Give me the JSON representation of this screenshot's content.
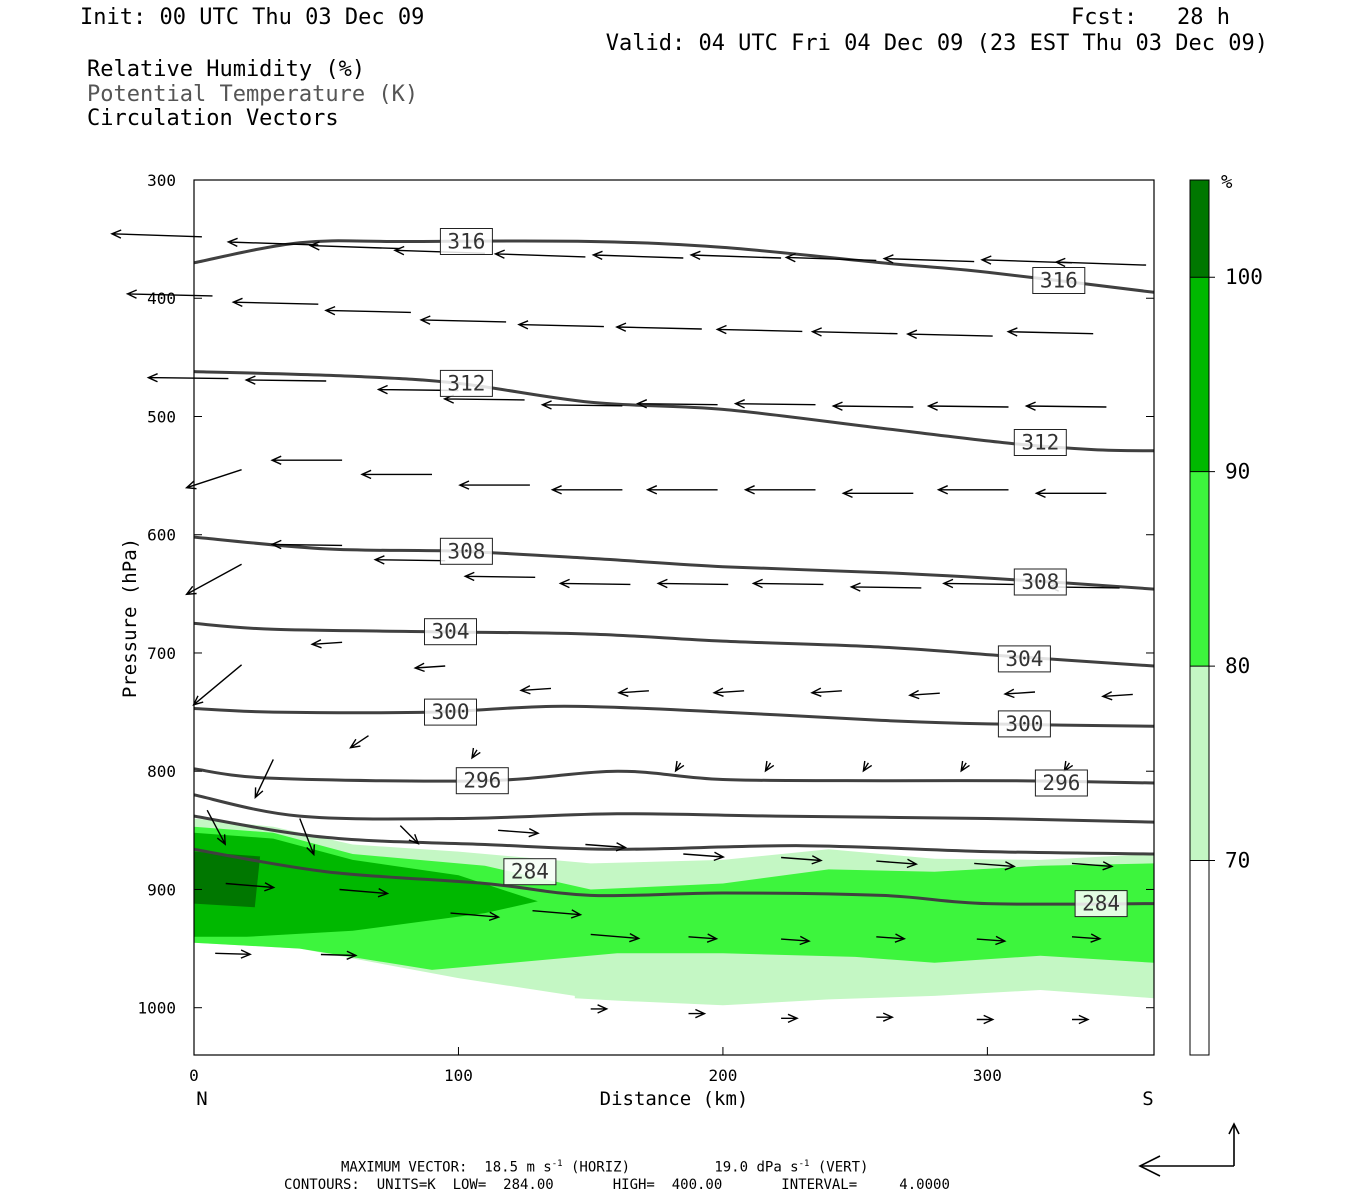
{
  "header": {
    "init": "Init: 00 UTC Thu 03 Dec 09",
    "fcst": "Fcst:   28 h",
    "valid": "Valid: 04 UTC Fri 04 Dec 09 (23 EST Thu 03 Dec 09)",
    "field1": "Relative Humidity (%)",
    "field2": "Potential Temperature (K)",
    "field3": "Circulation Vectors"
  },
  "footer": {
    "max_vector_label": "MAXIMUM VECTOR:",
    "max_vector_horiz": "18.5 m s",
    "max_vector_horiz_exp": "-1",
    "max_vector_horiz_tail": " (HORIZ)",
    "max_vector_vert": "19.0 dPa s",
    "max_vector_vert_exp": "-1",
    "max_vector_vert_tail": " (VERT)",
    "contours": "CONTOURS:  UNITS=K  LOW=  284.00       HIGH=  400.00       INTERVAL=     4.0000"
  },
  "colors": {
    "rh_70_80": "#c4f7c4",
    "rh_80_90": "#3df53d",
    "rh_90_100": "#00b800",
    "rh_100": "#007700",
    "theta_line": "#404040",
    "vector": "#000000"
  },
  "chart_data": {
    "type": "cross-section",
    "xlabel": "Distance (km)",
    "ylabel": "Pressure (hPa)",
    "xlim": [
      0,
      363
    ],
    "ylim": [
      1040,
      300
    ],
    "x_ticks": [
      0,
      100,
      200,
      300
    ],
    "y_ticks": [
      300,
      400,
      500,
      600,
      700,
      800,
      900,
      1000
    ],
    "endpoints": {
      "left": "N",
      "right": "S"
    },
    "colorbar": {
      "unit": "%",
      "ticks": [
        70,
        80,
        90,
        100
      ],
      "bands": [
        {
          "from": 60,
          "to": 70,
          "color": "#ffffff"
        },
        {
          "from": 70,
          "to": 80,
          "color": "#c4f7c4"
        },
        {
          "from": 80,
          "to": 90,
          "color": "#3df53d"
        },
        {
          "from": 90,
          "to": 100,
          "color": "#00b800"
        },
        {
          "from": 100,
          "to": 105,
          "color": "#007700"
        }
      ]
    },
    "theta_isentropes": [
      {
        "value": 316,
        "points": [
          [
            0,
            370
          ],
          [
            40,
            353
          ],
          [
            80,
            352
          ],
          [
            150,
            352
          ],
          [
            200,
            357
          ],
          [
            260,
            370
          ],
          [
            300,
            378
          ],
          [
            363,
            395
          ]
        ],
        "labels": [
          [
            103,
            352
          ],
          [
            327,
            385
          ]
        ]
      },
      {
        "value": 312,
        "points": [
          [
            0,
            462
          ],
          [
            60,
            466
          ],
          [
            100,
            472
          ],
          [
            150,
            488
          ],
          [
            200,
            494
          ],
          [
            260,
            510
          ],
          [
            310,
            523
          ],
          [
            340,
            528
          ],
          [
            363,
            529
          ]
        ],
        "labels": [
          [
            103,
            472
          ],
          [
            320,
            522
          ]
        ]
      },
      {
        "value": 308,
        "points": [
          [
            0,
            602
          ],
          [
            50,
            612
          ],
          [
            100,
            614
          ],
          [
            150,
            620
          ],
          [
            200,
            627
          ],
          [
            260,
            632
          ],
          [
            310,
            638
          ],
          [
            363,
            646
          ]
        ],
        "labels": [
          [
            103,
            614
          ],
          [
            320,
            640
          ]
        ]
      },
      {
        "value": 304,
        "points": [
          [
            0,
            675
          ],
          [
            30,
            680
          ],
          [
            90,
            682
          ],
          [
            150,
            684
          ],
          [
            200,
            690
          ],
          [
            260,
            695
          ],
          [
            310,
            703
          ],
          [
            363,
            711
          ]
        ],
        "labels": [
          [
            97,
            682
          ],
          [
            314,
            705
          ]
        ]
      },
      {
        "value": 300,
        "points": [
          [
            0,
            747
          ],
          [
            30,
            750
          ],
          [
            90,
            750
          ],
          [
            140,
            745
          ],
          [
            200,
            750
          ],
          [
            260,
            757
          ],
          [
            300,
            760
          ],
          [
            363,
            762
          ]
        ],
        "labels": [
          [
            97,
            750
          ],
          [
            314,
            760
          ]
        ]
      },
      {
        "value": 296,
        "points": [
          [
            0,
            798
          ],
          [
            30,
            806
          ],
          [
            110,
            808
          ],
          [
            160,
            800
          ],
          [
            200,
            807
          ],
          [
            260,
            808
          ],
          [
            310,
            808
          ],
          [
            363,
            810
          ]
        ],
        "labels": [
          [
            109,
            808
          ],
          [
            328,
            810
          ]
        ]
      },
      {
        "value": 292,
        "points": [
          [
            0,
            820
          ],
          [
            40,
            838
          ],
          [
            100,
            840
          ],
          [
            160,
            836
          ],
          [
            220,
            838
          ],
          [
            300,
            840
          ],
          [
            363,
            843
          ]
        ]
      },
      {
        "value": 288,
        "points": [
          [
            0,
            838
          ],
          [
            50,
            856
          ],
          [
            110,
            862
          ],
          [
            160,
            866
          ],
          [
            230,
            863
          ],
          [
            300,
            868
          ],
          [
            363,
            870
          ]
        ]
      },
      {
        "value": 284,
        "points": [
          [
            0,
            866
          ],
          [
            50,
            885
          ],
          [
            110,
            895
          ],
          [
            150,
            905
          ],
          [
            200,
            903
          ],
          [
            260,
            905
          ],
          [
            300,
            912
          ],
          [
            363,
            912
          ]
        ],
        "labels": [
          [
            127,
            885
          ],
          [
            343,
            912
          ]
        ]
      }
    ],
    "rh_fields": [
      {
        "level": "70-80",
        "polygon": [
          [
            0,
            840
          ],
          [
            30,
            847
          ],
          [
            60,
            862
          ],
          [
            100,
            868
          ],
          [
            150,
            878
          ],
          [
            200,
            875
          ],
          [
            240,
            866
          ],
          [
            280,
            874
          ],
          [
            320,
            875
          ],
          [
            363,
            870
          ],
          [
            363,
            992
          ],
          [
            320,
            985
          ],
          [
            280,
            990
          ],
          [
            240,
            993
          ],
          [
            200,
            998
          ],
          [
            160,
            994
          ],
          [
            144,
            992
          ],
          [
            144,
            990
          ],
          [
            100,
            975
          ],
          [
            40,
            950
          ],
          [
            0,
            945
          ]
        ]
      },
      {
        "level": "80-90",
        "polygon": [
          [
            0,
            847
          ],
          [
            30,
            852
          ],
          [
            60,
            870
          ],
          [
            110,
            880
          ],
          [
            150,
            900
          ],
          [
            200,
            895
          ],
          [
            240,
            883
          ],
          [
            280,
            885
          ],
          [
            320,
            880
          ],
          [
            363,
            878
          ],
          [
            363,
            962
          ],
          [
            320,
            956
          ],
          [
            280,
            962
          ],
          [
            250,
            957
          ],
          [
            200,
            954
          ],
          [
            160,
            954
          ],
          [
            90,
            968
          ],
          [
            40,
            950
          ],
          [
            0,
            945
          ]
        ]
      },
      {
        "level": "90-100",
        "polygon": [
          [
            0,
            852
          ],
          [
            30,
            857
          ],
          [
            60,
            875
          ],
          [
            100,
            888
          ],
          [
            130,
            910
          ],
          [
            110,
            920
          ],
          [
            60,
            935
          ],
          [
            20,
            940
          ],
          [
            0,
            940
          ]
        ]
      },
      {
        "level": "100+",
        "polygon": [
          [
            0,
            868
          ],
          [
            25,
            872
          ],
          [
            23,
            915
          ],
          [
            0,
            912
          ]
        ]
      }
    ],
    "vectors": [
      [
        [
          3,
          348
        ],
        [
          47,
          355
        ],
        [
          78,
          358
        ],
        [
          110,
          362
        ],
        [
          148,
          365
        ],
        [
          185,
          366
        ],
        [
          222,
          366
        ],
        [
          258,
          368
        ],
        [
          295,
          369
        ],
        [
          332,
          370
        ],
        [
          360,
          372
        ]
      ],
      [
        [
          7,
          398
        ],
        [
          47,
          405
        ],
        [
          82,
          412
        ],
        [
          118,
          420
        ],
        [
          155,
          424
        ],
        [
          192,
          426
        ],
        [
          230,
          428
        ],
        [
          266,
          430
        ],
        [
          302,
          432
        ],
        [
          340,
          430
        ]
      ],
      [
        [
          13,
          468
        ],
        [
          50,
          470
        ],
        [
          100,
          478
        ],
        [
          125,
          486
        ],
        [
          162,
          491
        ],
        [
          198,
          490
        ],
        [
          235,
          490
        ],
        [
          272,
          492
        ],
        [
          308,
          492
        ],
        [
          345,
          492
        ]
      ],
      [
        [
          18,
          545
        ],
        [
          56,
          537
        ],
        [
          90,
          549
        ],
        [
          127,
          558
        ],
        [
          162,
          562
        ],
        [
          198,
          562
        ],
        [
          235,
          562
        ],
        [
          272,
          565
        ],
        [
          308,
          562
        ],
        [
          345,
          565
        ]
      ],
      [
        [
          18,
          625
        ],
        [
          56,
          609
        ],
        [
          95,
          622
        ],
        [
          129,
          636
        ],
        [
          165,
          642
        ],
        [
          202,
          642
        ],
        [
          238,
          642
        ],
        [
          275,
          645
        ],
        [
          310,
          642
        ],
        [
          350,
          645
        ]
      ],
      [
        [
          18,
          710
        ],
        [
          56,
          691
        ],
        [
          95,
          711
        ],
        [
          135,
          730
        ],
        [
          172,
          732
        ],
        [
          208,
          732
        ],
        [
          245,
          732
        ],
        [
          282,
          734
        ],
        [
          318,
          733
        ],
        [
          355,
          735
        ]
      ],
      [
        [
          30,
          790
        ],
        [
          66,
          770
        ],
        [
          107,
          782
        ],
        [
          184,
          793
        ],
        [
          218,
          793
        ],
        [
          255,
          793
        ],
        [
          292,
          793
        ],
        [
          331,
          793
        ]
      ],
      [
        [
          5,
          833
        ],
        [
          40,
          840
        ],
        [
          78,
          846
        ],
        [
          115,
          850
        ],
        [
          148,
          862
        ],
        [
          185,
          870
        ],
        [
          222,
          873
        ],
        [
          258,
          876
        ],
        [
          295,
          878
        ],
        [
          332,
          878
        ]
      ],
      [
        [
          12,
          895
        ],
        [
          55,
          900
        ],
        [
          97,
          920
        ],
        [
          128,
          918
        ],
        [
          150,
          938
        ],
        [
          187,
          940
        ],
        [
          222,
          942
        ],
        [
          258,
          940
        ],
        [
          296,
          942
        ],
        [
          332,
          940
        ]
      ],
      [
        [
          8,
          954
        ],
        [
          48,
          955
        ],
        [
          150,
          1001
        ],
        [
          187,
          1005
        ],
        [
          222,
          1009
        ],
        [
          258,
          1008
        ],
        [
          296,
          1010
        ],
        [
          332,
          1010
        ]
      ]
    ]
  }
}
